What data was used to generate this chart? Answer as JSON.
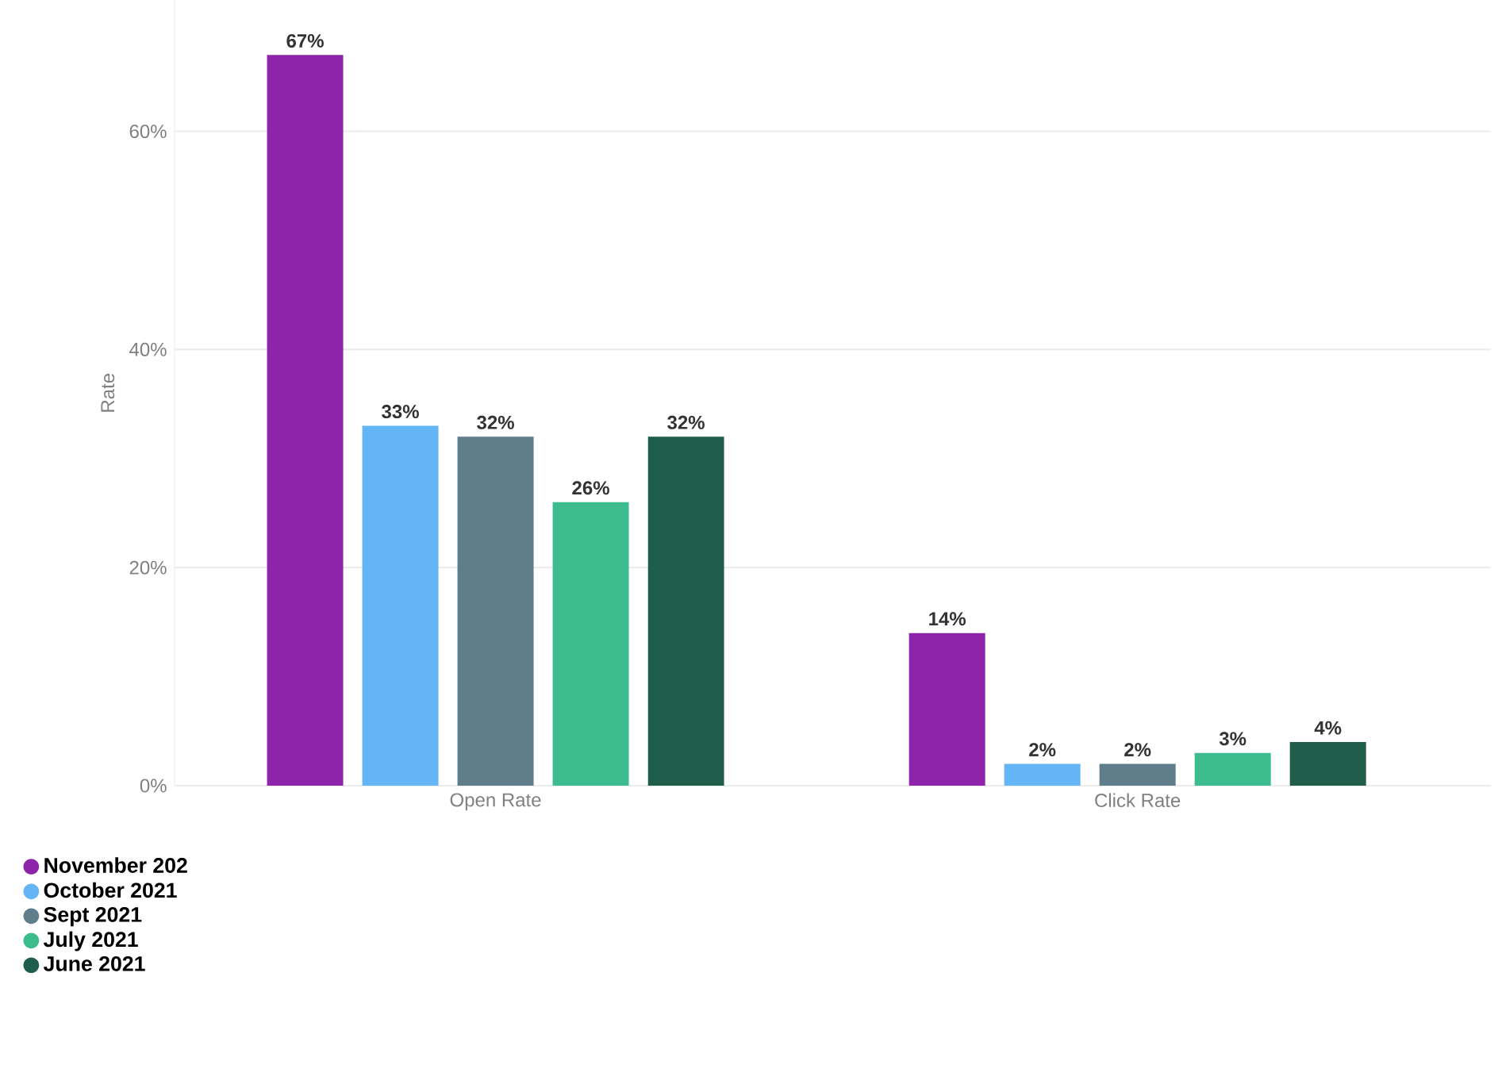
{
  "chart_data": {
    "type": "bar",
    "ylabel": "Rate",
    "categories": [
      "Open Rate",
      "Click Rate"
    ],
    "series": [
      {
        "name": "November 202",
        "color": "#8e24aa",
        "values": [
          67,
          14
        ],
        "value_labels": [
          "67%",
          "14%"
        ]
      },
      {
        "name": "October 2021",
        "color": "#64b5f6",
        "values": [
          33,
          2
        ],
        "value_labels": [
          "33%",
          "2%"
        ]
      },
      {
        "name": "Sept 2021",
        "color": "#607d8b",
        "values": [
          32,
          2
        ],
        "value_labels": [
          "32%",
          "2%"
        ]
      },
      {
        "name": "July 2021",
        "color": "#3dbd8f",
        "values": [
          26,
          3
        ],
        "value_labels": [
          "26%",
          "3%"
        ]
      },
      {
        "name": "June 2021",
        "color": "#1e5e4a",
        "values": [
          32,
          4
        ],
        "value_labels": [
          "32%",
          "4%"
        ]
      }
    ],
    "ylim": [
      0,
      72
    ],
    "yticks": [
      {
        "value": 0,
        "label": "0%"
      },
      {
        "value": 20,
        "label": "20%"
      },
      {
        "value": 40,
        "label": "40%"
      },
      {
        "value": 60,
        "label": "60%"
      }
    ],
    "grid": "y",
    "legend": "bottom left"
  }
}
